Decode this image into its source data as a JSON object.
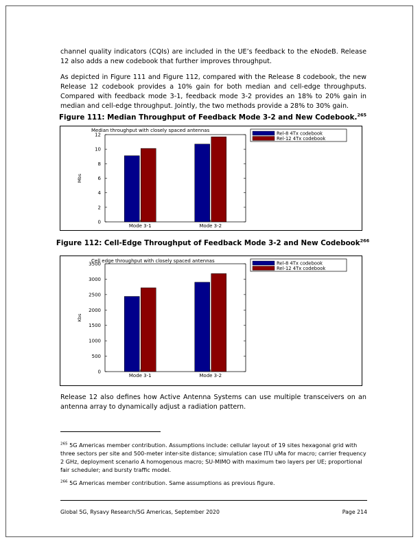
{
  "body": {
    "para1": "channel quality indicators (CQIs) are included in the UE’s feedback to the eNodeB. Release 12 also adds a new codebook that further improves throughput.",
    "para2": "As depicted in Figure 111 and Figure 112, compared with the Release 8 codebook, the new Release 12 codebook provides a 10% gain for both median and cell-edge throughputs. Compared with feedback mode 3-1, feedback mode 3-2 provides an 18% to 20% gain in median and cell-edge throughput. Jointly, the two methods provide a 28% to 30% gain.",
    "para3": "Release 12 also defines how Active Antenna Systems can use multiple transceivers on an antenna array to dynamically adjust a radiation pattern."
  },
  "figure111": {
    "caption": "Figure 111: Median Throughput of Feedback Mode 3-2 and New Codebook.",
    "footnote_ref": "265"
  },
  "figure112": {
    "caption": "Figure 112: Cell-Edge Throughput of Feedback Mode 3-2 and New Codebook",
    "footnote_ref": "266"
  },
  "chart_data": [
    {
      "type": "bar",
      "title": "Median throughput with closely spaced antennas",
      "xlabel": "",
      "ylabel": "Mbs",
      "categories": [
        "Mode 3-1",
        "Mode 3-2"
      ],
      "series": [
        {
          "name": "Rel-8 4Tx codebook",
          "values": [
            9.1,
            10.7
          ],
          "color": "#00008b"
        },
        {
          "name": "Rel-12 4Tx codebook",
          "values": [
            10.1,
            11.7
          ],
          "color": "#8b0000"
        }
      ],
      "ylim": [
        0,
        12
      ],
      "yticks": [
        0,
        2,
        4,
        6,
        8,
        10,
        12
      ],
      "legend_position": "top-right",
      "grid": false
    },
    {
      "type": "bar",
      "title": "Cell edge throughput with closely spaced antennas",
      "xlabel": "",
      "ylabel": "Kbs",
      "categories": [
        "Mode 3-1",
        "Mode 3-2"
      ],
      "series": [
        {
          "name": "Rel-8 4Tx codebook",
          "values": [
            2440,
            2900
          ],
          "color": "#00008b"
        },
        {
          "name": "Rel-12 4Tx codebook",
          "values": [
            2720,
            3180
          ],
          "color": "#8b0000"
        }
      ],
      "ylim": [
        0,
        3500
      ],
      "yticks": [
        0,
        500,
        1000,
        1500,
        2000,
        2500,
        3000,
        3500
      ],
      "legend_position": "top-right",
      "grid": false
    }
  ],
  "footnotes": [
    {
      "num": "265",
      "text": "5G Americas member contribution. Assumptions include: cellular layout of 19 sites hexagonal grid with three sectors per site and 500-meter inter-site distance; simulation case ITU uMa for macro; carrier frequency 2 GHz, deployment scenario A homogenous macro; SU-MIMO with maximum two layers per UE; proportional fair scheduler; and bursty traffic model."
    },
    {
      "num": "266",
      "text": "5G Americas member contribution. Same assumptions as previous figure."
    }
  ],
  "footer": {
    "left": "Global 5G, Rysavy Research/5G Americas, September 2020",
    "right": "Page 214"
  }
}
